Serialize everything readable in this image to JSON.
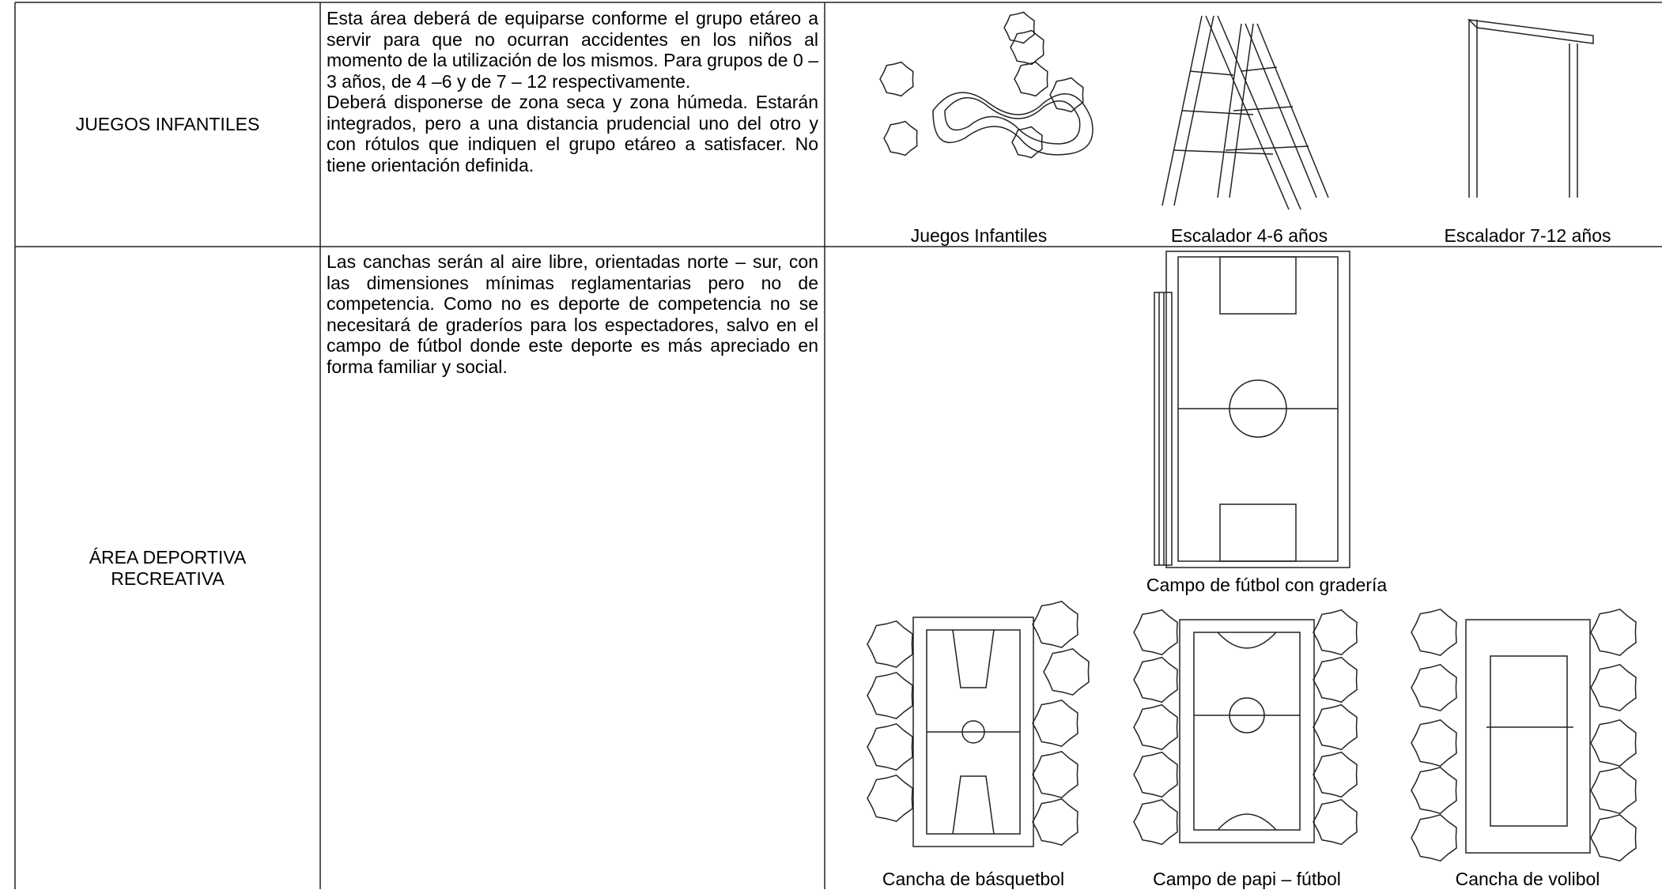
{
  "table": {
    "rows": [
      {
        "label": "JUEGOS INFANTILES",
        "description": [
          "Esta área deberá de equiparse conforme el grupo etáreo a servir para que no ocurran accidentes en los niños al momento de la utilización de los mismos. Para grupos de 0 – 3 años, de 4 –6 y de 7 – 12 respectivamente.",
          "Deberá disponerse de zona seca y zona húmeda. Estarán integrados, pero a una distancia prudencial uno del otro y con rótulos que indiquen el grupo etáreo a satisfacer. No tiene orientación definida."
        ],
        "figures": [
          {
            "caption": "Juegos Infantiles"
          },
          {
            "caption": "Escalador 4-6 años"
          },
          {
            "caption": "Escalador 7-12 años"
          }
        ]
      },
      {
        "label": "ÁREA DEPORTIVA RECREATIVA",
        "description": [
          "Las canchas serán al aire libre, orientadas norte – sur, con las dimensiones mínimas reglamentarias pero no de competencia.  Como no es deporte de competencia no se necesitará de graderíos para los espectadores, salvo en el campo de fútbol donde este deporte es más apreciado en forma familiar y social."
        ],
        "figures": [
          {
            "caption": "Campo de fútbol con gradería"
          },
          {
            "caption": "Cancha de básquetbol"
          },
          {
            "caption": "Campo de papi – fútbol"
          },
          {
            "caption": "Cancha de  volibol"
          }
        ]
      }
    ]
  }
}
